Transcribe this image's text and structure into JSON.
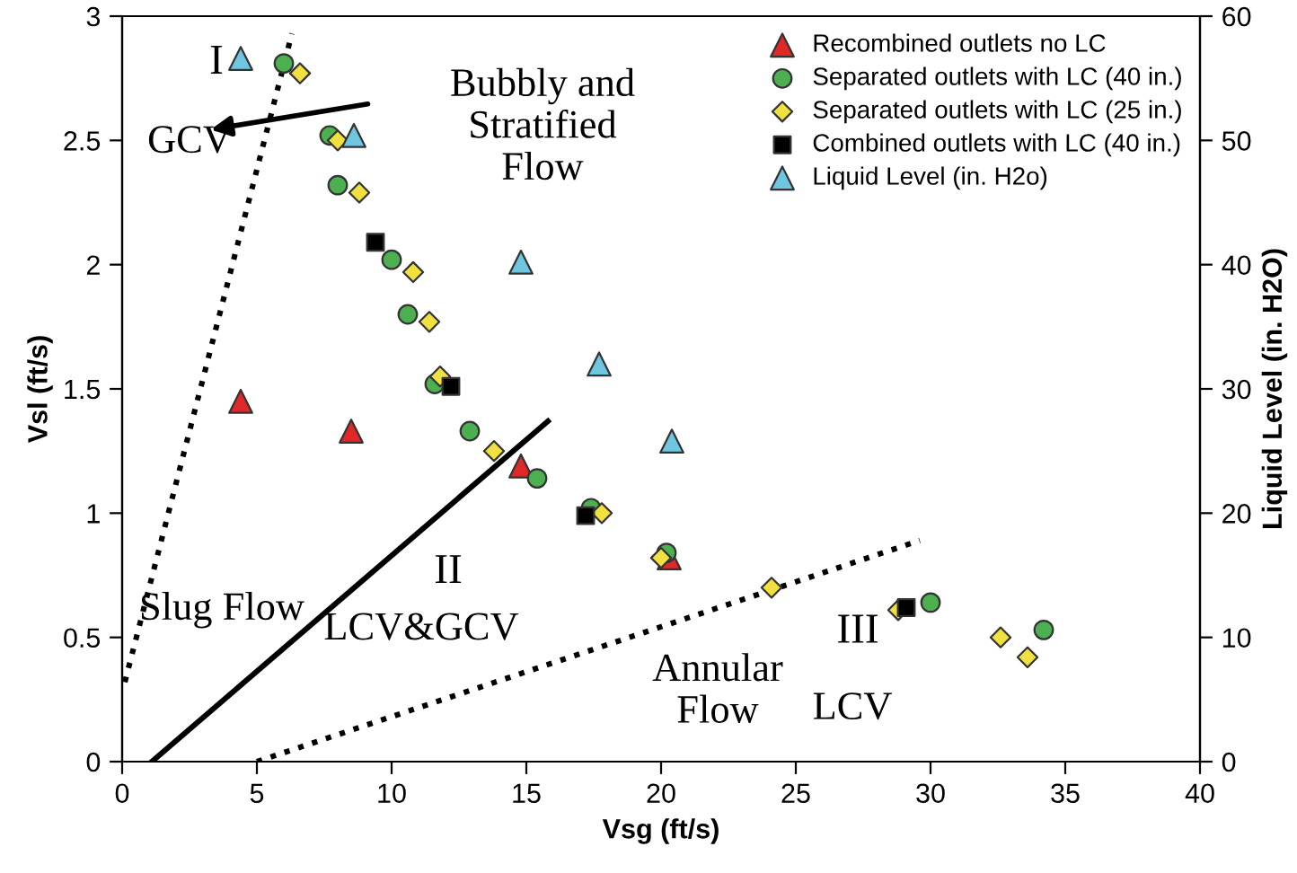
{
  "chart_data": {
    "type": "scatter",
    "xlabel": "Vsg (ft/s)",
    "ylabel": "Vsl (ft/s)",
    "y2label": "Liquid Level (in. H2O)",
    "xlim": [
      0,
      40
    ],
    "xticks": [
      0,
      5,
      10,
      15,
      20,
      25,
      30,
      35,
      40
    ],
    "ylim": [
      0,
      3
    ],
    "yticks": [
      0,
      0.5,
      1,
      1.5,
      2,
      2.5,
      3
    ],
    "y2lim": [
      0,
      60
    ],
    "y2ticks": [
      0,
      10,
      20,
      30,
      40,
      50,
      60
    ],
    "grid": false,
    "legend": "top right",
    "series": [
      {
        "name": "Recombined outlets no LC",
        "color": "#e02828",
        "marker": "triangle",
        "x": [
          4.4,
          8.5,
          14.8,
          20.3
        ],
        "values": [
          1.45,
          1.33,
          1.19,
          0.82
        ]
      },
      {
        "name": "Separated outlets with LC (40 in.)",
        "color": "#4caf50",
        "marker": "circle",
        "x": [
          6.0,
          7.7,
          8.0,
          10.0,
          10.6,
          11.6,
          12.9,
          15.4,
          17.4,
          20.2,
          30.0,
          34.2
        ],
        "values": [
          2.81,
          2.52,
          2.32,
          2.02,
          1.8,
          1.52,
          1.33,
          1.14,
          1.02,
          0.84,
          0.64,
          0.53
        ]
      },
      {
        "name": "Separated outlets with LC (25 in.)",
        "color": "#f0e040",
        "marker": "diamond",
        "x": [
          6.6,
          8.0,
          8.8,
          10.8,
          11.4,
          11.8,
          13.8,
          17.8,
          20.0,
          24.1,
          28.8,
          32.6,
          33.6
        ],
        "values": [
          2.77,
          2.5,
          2.29,
          1.97,
          1.77,
          1.55,
          1.25,
          1.0,
          0.82,
          0.7,
          0.61,
          0.5,
          0.42
        ]
      },
      {
        "name": "Combined outlets with LC (40 in.)",
        "color": "#000000",
        "marker": "square",
        "x": [
          9.4,
          12.2,
          17.2,
          29.1
        ],
        "values": [
          2.09,
          1.51,
          0.99,
          0.62
        ]
      },
      {
        "name": "Liquid Level (in. H2o)",
        "color": "#6ec6e0",
        "marker": "triangle",
        "axis": "y2",
        "x": [
          4.4,
          8.6,
          14.8,
          17.7,
          20.4
        ],
        "values": [
          56.6,
          50.4,
          40.2,
          32,
          25.8
        ]
      },
      {
        "type": "line",
        "color": "#000000",
        "line_style": "dotted",
        "marker": "none",
        "x": [
          0.1,
          6.3
        ],
        "values": [
          0.32,
          2.93
        ]
      },
      {
        "type": "line",
        "color": "#000000",
        "line_style": "solid",
        "marker": "none",
        "x": [
          1.1,
          15.8
        ],
        "values": [
          0,
          1.37
        ]
      },
      {
        "type": "line",
        "color": "#000000",
        "line_style": "dotted",
        "marker": "none",
        "x": [
          5.0,
          29.6
        ],
        "values": [
          0,
          0.89
        ]
      }
    ],
    "annotations": [
      "Bubbly and\nStratified\nFlow",
      "I",
      "GCV",
      "Slug Flow",
      "II",
      "LCV&GCV",
      "Annular\nFlow",
      "III",
      "LCV"
    ]
  }
}
